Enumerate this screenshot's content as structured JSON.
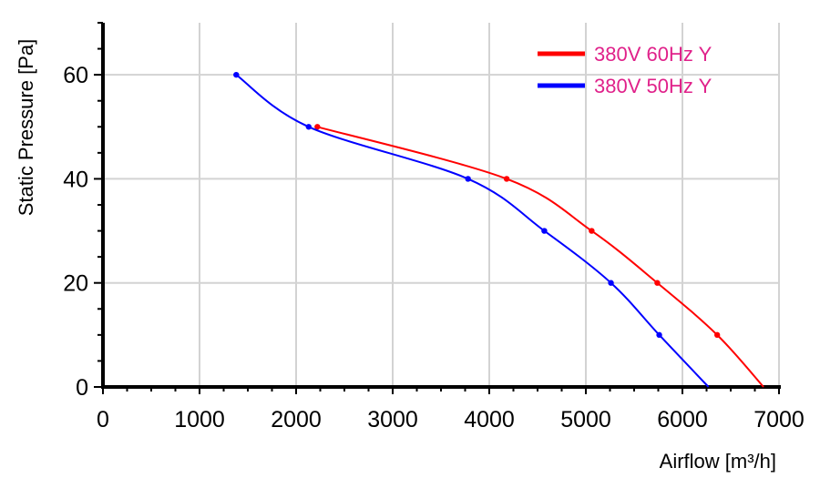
{
  "chart_data": {
    "type": "line",
    "xlabel": "Airflow [m³/h]",
    "ylabel": "Static Pressure [Pa]",
    "xlim": [
      0,
      7000
    ],
    "ylim": [
      0,
      70
    ],
    "x_ticks": [
      0,
      1000,
      2000,
      3000,
      4000,
      5000,
      6000,
      7000
    ],
    "y_ticks": [
      0,
      20,
      40,
      60
    ],
    "x_tick_labels": [
      "0",
      "1000",
      "2000",
      "3000",
      "4000",
      "5000",
      "6000",
      "7000"
    ],
    "y_tick_labels": [
      "0",
      "20",
      "40",
      "60"
    ],
    "grid": true,
    "legend_position": "top-right",
    "legend_text_color": "#e0218a",
    "series": [
      {
        "name": "380V 60Hz Y",
        "color": "#ff0000",
        "x": [
          2220,
          4180,
          5060,
          5740,
          6360,
          6840
        ],
        "y": [
          50,
          40,
          30,
          20,
          10,
          0
        ],
        "markers": [
          true,
          true,
          true,
          true,
          true,
          false
        ]
      },
      {
        "name": "380V 50Hz Y",
        "color": "#0000ff",
        "x": [
          1380,
          2130,
          3780,
          4570,
          5260,
          5760,
          6270
        ],
        "y": [
          60,
          50,
          40,
          30,
          20,
          10,
          0
        ],
        "markers": [
          true,
          true,
          true,
          true,
          true,
          true,
          false
        ]
      }
    ]
  }
}
